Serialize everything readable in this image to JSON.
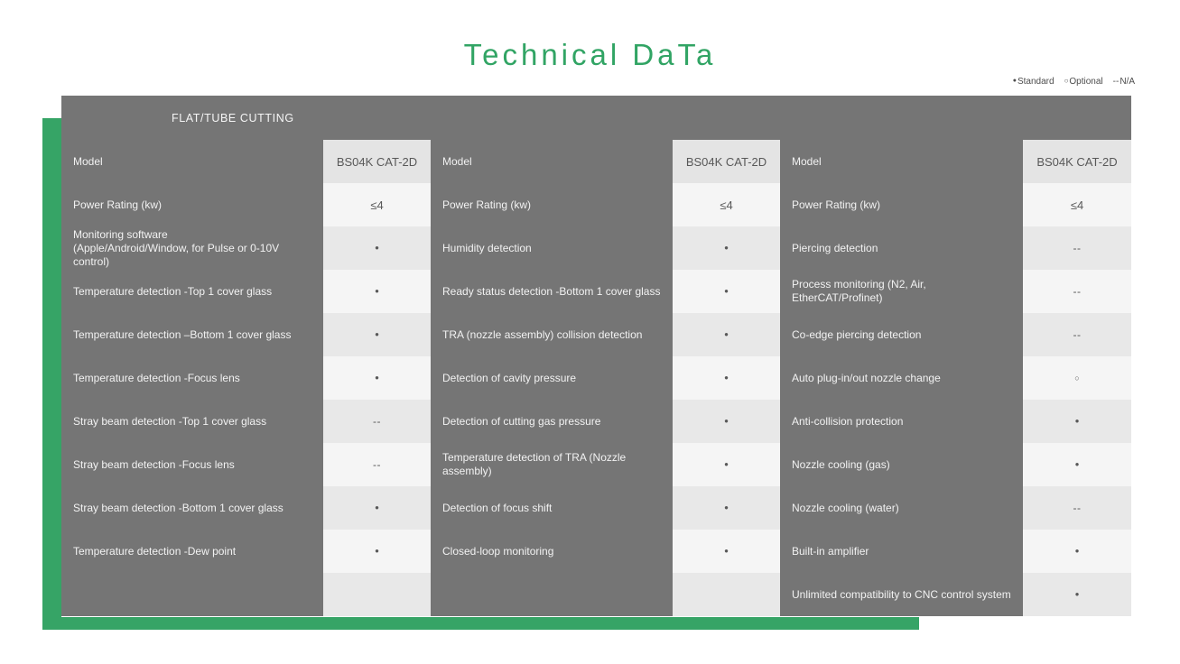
{
  "page_title": "Technical DaTa",
  "legend": {
    "items": [
      {
        "symbol": "●",
        "label": "Standard"
      },
      {
        "symbol": "○",
        "label": "Optional"
      },
      {
        "symbol": "--",
        "label": "N/A"
      }
    ]
  },
  "colors": {
    "accent_green": "#36a466",
    "title_green": "#31a464",
    "table_gray": "#757575",
    "stripe_dark": "#e8e8e8",
    "stripe_light": "#f5f5f5"
  },
  "table": {
    "section_header": "FLAT/TUBE CUTTING",
    "panels": [
      {
        "rows": [
          {
            "label": "Model",
            "value": "BS04K CAT-2D"
          },
          {
            "label": "Power Rating (kw)",
            "value": "≤4"
          },
          {
            "label": "Monitoring software\n(Apple/Android/Window, for Pulse or 0-10V control)",
            "value": "●"
          },
          {
            "label": "Temperature detection -Top 1 cover glass",
            "value": "●"
          },
          {
            "label": "Temperature detection –Bottom 1 cover glass",
            "value": "●"
          },
          {
            "label": "Temperature detection -Focus lens",
            "value": "●"
          },
          {
            "label": "Stray beam detection -Top 1 cover glass",
            "value": "--"
          },
          {
            "label": "Stray beam detection -Focus lens",
            "value": "--"
          },
          {
            "label": "Stray beam detection -Bottom 1 cover glass",
            "value": "●"
          },
          {
            "label": "Temperature detection -Dew point",
            "value": "●"
          },
          {
            "label": "",
            "value": ""
          }
        ]
      },
      {
        "rows": [
          {
            "label": "Model",
            "value": "BS04K CAT-2D"
          },
          {
            "label": "Power Rating (kw)",
            "value": "≤4"
          },
          {
            "label": "Humidity detection",
            "value": "●"
          },
          {
            "label": "Ready status detection -Bottom 1 cover glass",
            "value": "●"
          },
          {
            "label": "TRA (nozzle assembly) collision detection",
            "value": "●"
          },
          {
            "label": "Detection of cavity pressure",
            "value": "●"
          },
          {
            "label": "Detection of cutting gas pressure",
            "value": "●"
          },
          {
            "label": "Temperature detection of TRA (Nozzle assembly)",
            "value": "●"
          },
          {
            "label": "Detection of focus shift",
            "value": "●"
          },
          {
            "label": "Closed-loop monitoring",
            "value": "●"
          },
          {
            "label": "",
            "value": ""
          }
        ]
      },
      {
        "rows": [
          {
            "label": "Model",
            "value": "BS04K CAT-2D"
          },
          {
            "label": "Power Rating (kw)",
            "value": "≤4"
          },
          {
            "label": "Piercing detection",
            "value": "--"
          },
          {
            "label": "Process monitoring (N2, Air, EtherCAT/Profinet)",
            "value": "--"
          },
          {
            "label": "Co-edge piercing detection",
            "value": "--"
          },
          {
            "label": "Auto plug-in/out nozzle change",
            "value": "○"
          },
          {
            "label": "Anti-collision protection",
            "value": "●"
          },
          {
            "label": "Nozzle cooling (gas)",
            "value": "●"
          },
          {
            "label": "Nozzle cooling (water)",
            "value": "--"
          },
          {
            "label": "Built-in amplifier",
            "value": "●"
          },
          {
            "label": "Unlimited compatibility to CNC control system",
            "value": "●"
          }
        ]
      }
    ]
  }
}
